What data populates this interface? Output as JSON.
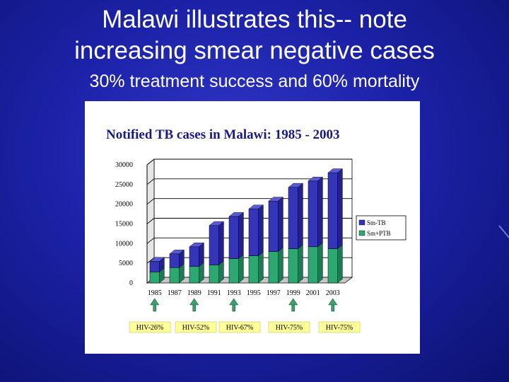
{
  "slide": {
    "title_line1": "Malawi illustrates this-- note",
    "title_line2": "increasing smear negative cases",
    "subtitle": "30% treatment success and 60% mortality"
  },
  "colors": {
    "background": "#1c22a8",
    "sm_neg": "#3535b8",
    "sm_neg_top": "#5a5ad6",
    "sm_pos": "#2ea872",
    "sm_pos_top": "#6fd9a6",
    "arrow": "#3e9e6e",
    "label_bg": "#ffff99"
  },
  "chart_data": {
    "type": "bar",
    "stacked": true,
    "title": "Notified TB cases in Malawi: 1985 - 2003",
    "categories": [
      "1985",
      "1987",
      "1989",
      "1991",
      "1993",
      "1995",
      "1997",
      "1999",
      "2001",
      "2003"
    ],
    "series": [
      {
        "name": "Sm+PTB",
        "values": [
          2800,
          3900,
          4200,
          4600,
          6200,
          6900,
          8000,
          8700,
          9200,
          8700
        ]
      },
      {
        "name": "Sm-TB",
        "values": [
          2700,
          3500,
          5000,
          10000,
          10700,
          11900,
          12800,
          15600,
          16700,
          19300
        ]
      }
    ],
    "legend": [
      "Sm-TB",
      "Sm+PTB"
    ],
    "legend_position": "right",
    "ylim": [
      0,
      30000
    ],
    "yticks": [
      "0",
      "5000",
      "10000",
      "15000",
      "20000",
      "25000",
      "30000"
    ],
    "grid": true,
    "annotations": [
      {
        "category": "1985",
        "label": "HIV-26%"
      },
      {
        "category": "1989",
        "label": "HIV-52%"
      },
      {
        "category": "1993",
        "label": "HIV-67%"
      },
      {
        "category": "1999",
        "label": "HIV-75%"
      },
      {
        "category": "2003",
        "label": "HIV-75%"
      }
    ]
  }
}
